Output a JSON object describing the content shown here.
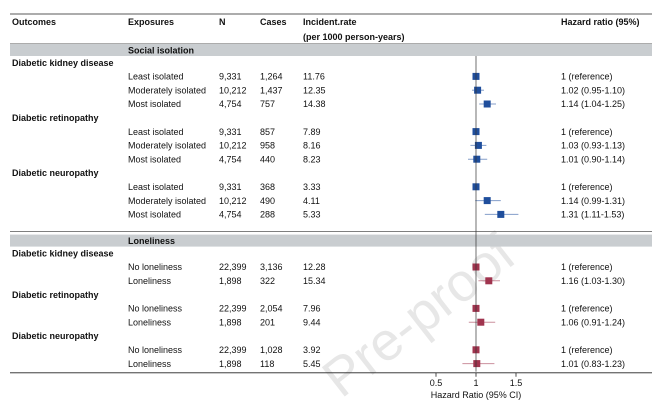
{
  "watermark": "Pre-proof",
  "chart_data": {
    "type": "forest",
    "columns": {
      "outcomes": "Outcomes",
      "exposures": "Exposures",
      "n": "N",
      "cases": "Cases",
      "rate": "Incident.rate",
      "rate_unit": "(per 1000 person-years)",
      "hr": "Hazard ratio (95%)"
    },
    "xlabel": "Hazard Ratio (95% CI)",
    "xticks": [
      0.5,
      1,
      1.5
    ],
    "xlim": [
      0.3,
      1.75
    ],
    "reference_line": 1,
    "sections": [
      {
        "title": "Social isolation",
        "color": "#1f4e9c",
        "groups": [
          {
            "outcome": "Diabetic kidney disease",
            "rows": [
              {
                "exposure": "Least isolated",
                "n": "9,331",
                "cases": "1,264",
                "rate": "11.76",
                "hr": 1.0,
                "lo": 1.0,
                "hi": 1.0,
                "label": "1 (reference)"
              },
              {
                "exposure": "Moderately isolated",
                "n": "10,212",
                "cases": "1,437",
                "rate": "12.35",
                "hr": 1.02,
                "lo": 0.95,
                "hi": 1.1,
                "label": "1.02 (0.95-1.10)"
              },
              {
                "exposure": "Most isolated",
                "n": "4,754",
                "cases": "757",
                "rate": "14.38",
                "hr": 1.14,
                "lo": 1.04,
                "hi": 1.25,
                "label": "1.14 (1.04-1.25)"
              }
            ]
          },
          {
            "outcome": "Diabetic retinopathy",
            "rows": [
              {
                "exposure": "Least isolated",
                "n": "9,331",
                "cases": "857",
                "rate": "7.89",
                "hr": 1.0,
                "lo": 1.0,
                "hi": 1.0,
                "label": "1 (reference)"
              },
              {
                "exposure": "Moderately isolated",
                "n": "10,212",
                "cases": "958",
                "rate": "8.16",
                "hr": 1.03,
                "lo": 0.93,
                "hi": 1.13,
                "label": "1.03 (0.93-1.13)"
              },
              {
                "exposure": "Most isolated",
                "n": "4,754",
                "cases": "440",
                "rate": "8.23",
                "hr": 1.01,
                "lo": 0.9,
                "hi": 1.14,
                "label": "1.01 (0.90-1.14)"
              }
            ]
          },
          {
            "outcome": "Diabetic neuropathy",
            "rows": [
              {
                "exposure": "Least isolated",
                "n": "9,331",
                "cases": "368",
                "rate": "3.33",
                "hr": 1.0,
                "lo": 1.0,
                "hi": 1.0,
                "label": "1 (reference)"
              },
              {
                "exposure": "Moderately isolated",
                "n": "10,212",
                "cases": "490",
                "rate": "4.11",
                "hr": 1.14,
                "lo": 0.99,
                "hi": 1.31,
                "label": "1.14 (0.99-1.31)"
              },
              {
                "exposure": "Most isolated",
                "n": "4,754",
                "cases": "288",
                "rate": "5.33",
                "hr": 1.31,
                "lo": 1.11,
                "hi": 1.53,
                "label": "1.31 (1.11-1.53)"
              }
            ]
          }
        ]
      },
      {
        "title": "Loneliness",
        "color": "#a0344e",
        "groups": [
          {
            "outcome": "Diabetic kidney disease",
            "rows": [
              {
                "exposure": "No loneliness",
                "n": "22,399",
                "cases": "3,136",
                "rate": "12.28",
                "hr": 1.0,
                "lo": 1.0,
                "hi": 1.0,
                "label": "1  (reference)"
              },
              {
                "exposure": "Loneliness",
                "n": "1,898",
                "cases": "322",
                "rate": "15.34",
                "hr": 1.16,
                "lo": 1.03,
                "hi": 1.3,
                "label": "1.16 (1.03-1.30)"
              }
            ]
          },
          {
            "outcome": "Diabetic retinopathy",
            "rows": [
              {
                "exposure": "No loneliness",
                "n": "22,399",
                "cases": "2,054",
                "rate": "7.96",
                "hr": 1.0,
                "lo": 1.0,
                "hi": 1.0,
                "label": "1 (reference)"
              },
              {
                "exposure": "Loneliness",
                "n": "1,898",
                "cases": "201",
                "rate": "9.44",
                "hr": 1.06,
                "lo": 0.91,
                "hi": 1.24,
                "label": "1.06 (0.91-1.24)"
              }
            ]
          },
          {
            "outcome": "Diabetic neuropathy",
            "rows": [
              {
                "exposure": "No loneliness",
                "n": "22,399",
                "cases": "1,028",
                "rate": "3.92",
                "hr": 1.0,
                "lo": 1.0,
                "hi": 1.0,
                "label": "1 (reference)"
              },
              {
                "exposure": "Loneliness",
                "n": "1,898",
                "cases": "118",
                "rate": "5.45",
                "hr": 1.01,
                "lo": 0.83,
                "hi": 1.23,
                "label": "1.01 (0.83-1.23)"
              }
            ]
          }
        ]
      }
    ]
  }
}
